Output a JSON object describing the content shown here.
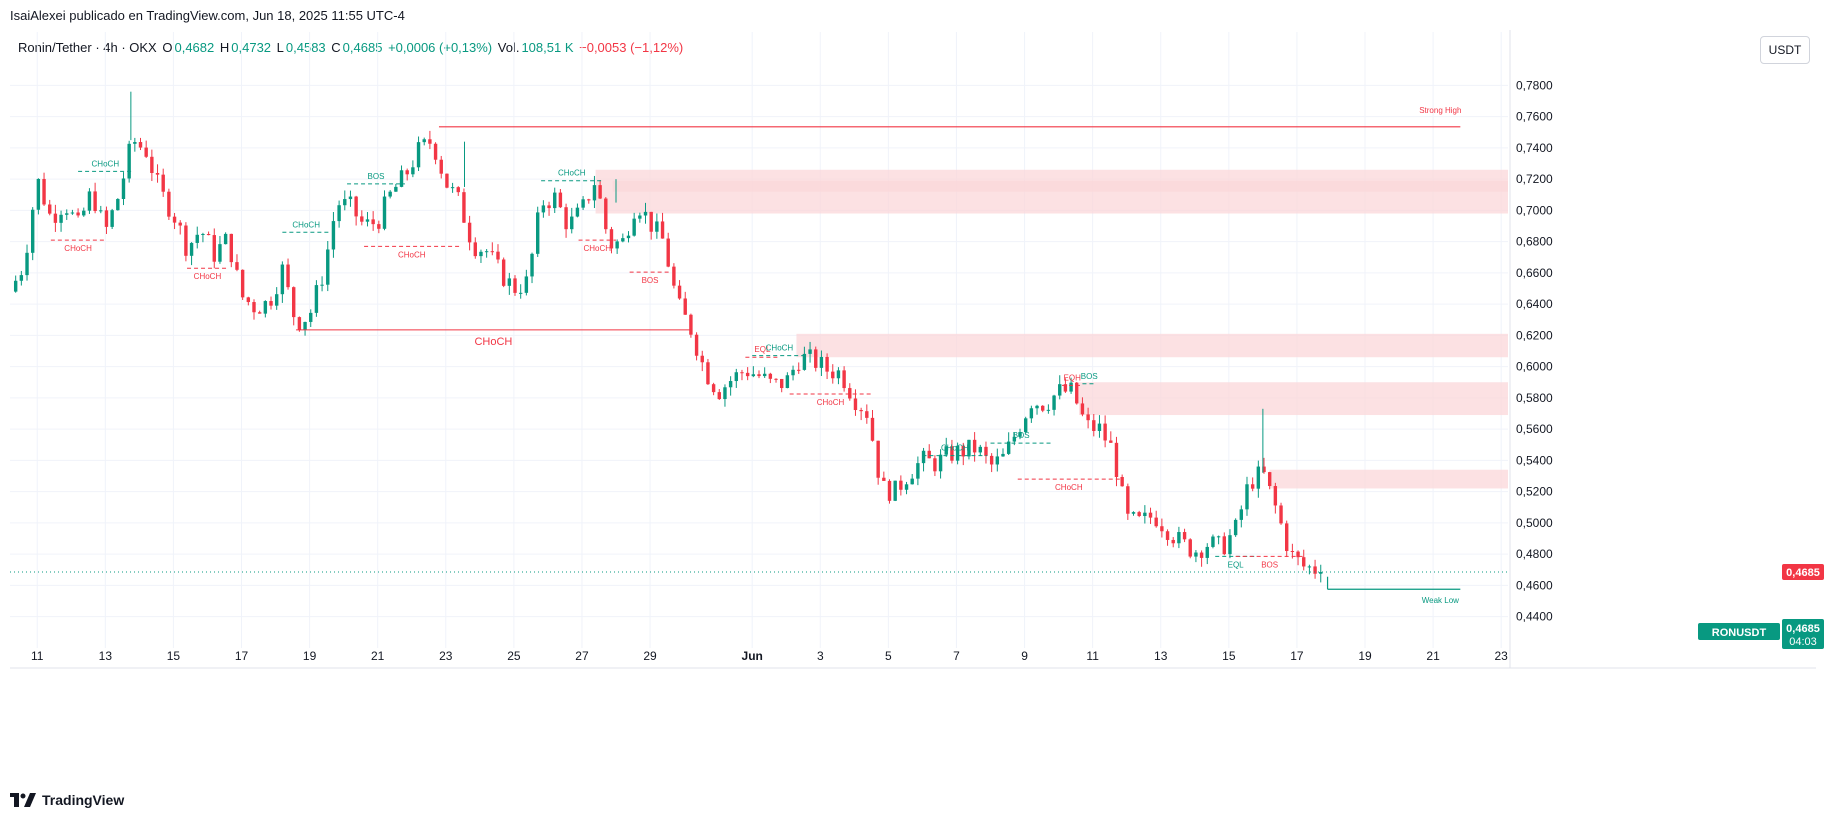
{
  "header": {
    "published": "IsaiAlexei publicado en TradingView.com, Jun 18, 2025 11:55 UTC-4"
  },
  "legend": {
    "symbol": "Ronin/Tether · 4h · OKX",
    "o_label": "O",
    "o_value": "0,4682",
    "h_label": "H",
    "h_value": "0,4732",
    "l_label": "L",
    "l_value": "0,4583",
    "c_label": "C",
    "c_value": "0,4685",
    "change": "+0,0006 (+0,13%)",
    "vol_label": "Vol.",
    "vol_value": "108,51 K",
    "vol_change": "−0,0053 (−1,12%)"
  },
  "currency_button": "USDT",
  "brand": "TradingView",
  "colors": {
    "up": "#089981",
    "down": "#f23645",
    "zone": "#fbd7da",
    "grid": "#f0f3fa"
  },
  "chart_data": {
    "type": "candlestick",
    "symbol": "RONUSDT",
    "interval": "4h",
    "ylim": [
      0.425,
      0.795
    ],
    "y_ticks": [
      "0,7800",
      "0,7600",
      "0,7400",
      "0,7200",
      "0,7000",
      "0,6800",
      "0,6600",
      "0,6400",
      "0,6200",
      "0,6000",
      "0,5800",
      "0,5600",
      "0,5400",
      "0,5200",
      "0,5000",
      "0,4800",
      "0,4600",
      "0,4400"
    ],
    "y_tick_values": [
      0.78,
      0.76,
      0.74,
      0.72,
      0.7,
      0.68,
      0.66,
      0.64,
      0.62,
      0.6,
      0.58,
      0.56,
      0.54,
      0.52,
      0.5,
      0.48,
      0.46,
      0.44
    ],
    "x_range_days": [
      10.2,
      54.2
    ],
    "x_ticks": [
      {
        "day": 11,
        "label": "11"
      },
      {
        "day": 13,
        "label": "13"
      },
      {
        "day": 15,
        "label": "15"
      },
      {
        "day": 17,
        "label": "17"
      },
      {
        "day": 19,
        "label": "19"
      },
      {
        "day": 21,
        "label": "21"
      },
      {
        "day": 23,
        "label": "23"
      },
      {
        "day": 25,
        "label": "25"
      },
      {
        "day": 27,
        "label": "27"
      },
      {
        "day": 29,
        "label": "29"
      },
      {
        "day": 32,
        "label": "Jun"
      },
      {
        "day": 34,
        "label": "3"
      },
      {
        "day": 36,
        "label": "5"
      },
      {
        "day": 38,
        "label": "7"
      },
      {
        "day": 40,
        "label": "9"
      },
      {
        "day": 42,
        "label": "11"
      },
      {
        "day": 44,
        "label": "13"
      },
      {
        "day": 46,
        "label": "15"
      },
      {
        "day": 48,
        "label": "17"
      },
      {
        "day": 50,
        "label": "19"
      },
      {
        "day": 52,
        "label": "21"
      },
      {
        "day": 54,
        "label": "23"
      }
    ],
    "anchors": [
      [
        10.2,
        0.648
      ],
      [
        10.6,
        0.665
      ],
      [
        11.0,
        0.72
      ],
      [
        11.4,
        0.695
      ],
      [
        11.8,
        0.705
      ],
      [
        12.2,
        0.69
      ],
      [
        12.6,
        0.712
      ],
      [
        13.0,
        0.686
      ],
      [
        13.4,
        0.71
      ],
      [
        13.8,
        0.745
      ],
      [
        14.2,
        0.738
      ],
      [
        14.6,
        0.712
      ],
      [
        15.0,
        0.698
      ],
      [
        15.4,
        0.676
      ],
      [
        15.8,
        0.688
      ],
      [
        16.2,
        0.672
      ],
      [
        16.6,
        0.682
      ],
      [
        17.0,
        0.645
      ],
      [
        17.4,
        0.638
      ],
      [
        17.8,
        0.641
      ],
      [
        18.2,
        0.662
      ],
      [
        18.6,
        0.628
      ],
      [
        19.0,
        0.633
      ],
      [
        19.4,
        0.66
      ],
      [
        19.8,
        0.705
      ],
      [
        20.2,
        0.702
      ],
      [
        20.6,
        0.69
      ],
      [
        21.0,
        0.693
      ],
      [
        21.4,
        0.711
      ],
      [
        21.8,
        0.722
      ],
      [
        22.2,
        0.738
      ],
      [
        22.6,
        0.745
      ],
      [
        23.0,
        0.718
      ],
      [
        23.4,
        0.705
      ],
      [
        23.8,
        0.678
      ],
      [
        24.2,
        0.674
      ],
      [
        24.6,
        0.66
      ],
      [
        25.0,
        0.65
      ],
      [
        25.4,
        0.654
      ],
      [
        25.8,
        0.705
      ],
      [
        26.2,
        0.708
      ],
      [
        26.6,
        0.69
      ],
      [
        27.0,
        0.7
      ],
      [
        27.4,
        0.72
      ],
      [
        27.8,
        0.678
      ],
      [
        28.2,
        0.68
      ],
      [
        28.6,
        0.706
      ],
      [
        29.0,
        0.692
      ],
      [
        29.4,
        0.68
      ],
      [
        29.8,
        0.64
      ],
      [
        30.2,
        0.624
      ],
      [
        30.6,
        0.598
      ],
      [
        31.0,
        0.584
      ],
      [
        31.4,
        0.592
      ],
      [
        31.8,
        0.598
      ],
      [
        32.2,
        0.594
      ],
      [
        32.6,
        0.588
      ],
      [
        33.0,
        0.59
      ],
      [
        33.4,
        0.606
      ],
      [
        33.8,
        0.604
      ],
      [
        34.2,
        0.598
      ],
      [
        34.6,
        0.596
      ],
      [
        35.0,
        0.58
      ],
      [
        35.4,
        0.57
      ],
      [
        35.8,
        0.522
      ],
      [
        36.2,
        0.52
      ],
      [
        36.6,
        0.532
      ],
      [
        37.0,
        0.54
      ],
      [
        37.4,
        0.538
      ],
      [
        37.8,
        0.544
      ],
      [
        38.2,
        0.546
      ],
      [
        38.6,
        0.548
      ],
      [
        39.0,
        0.536
      ],
      [
        39.4,
        0.542
      ],
      [
        39.8,
        0.56
      ],
      [
        40.2,
        0.578
      ],
      [
        40.6,
        0.576
      ],
      [
        41.0,
        0.584
      ],
      [
        41.4,
        0.584
      ],
      [
        41.8,
        0.562
      ],
      [
        42.2,
        0.56
      ],
      [
        42.6,
        0.546
      ],
      [
        43.0,
        0.502
      ],
      [
        43.4,
        0.5
      ],
      [
        43.8,
        0.505
      ],
      [
        44.2,
        0.496
      ],
      [
        44.6,
        0.487
      ],
      [
        45.0,
        0.482
      ],
      [
        45.4,
        0.487
      ],
      [
        45.8,
        0.484
      ],
      [
        46.2,
        0.496
      ],
      [
        46.6,
        0.526
      ],
      [
        47.0,
        0.532
      ],
      [
        47.4,
        0.508
      ],
      [
        47.8,
        0.48
      ],
      [
        48.2,
        0.472
      ],
      [
        48.6,
        0.47
      ],
      [
        48.8,
        0.4685
      ]
    ],
    "zones": [
      {
        "x0": 27.4,
        "x1": 54.2,
        "y0": 0.698,
        "y1": 0.726
      },
      {
        "x0": 27.9,
        "x1": 54.2,
        "y0": 0.712,
        "y1": 0.719
      },
      {
        "x0": 33.3,
        "x1": 54.2,
        "y0": 0.606,
        "y1": 0.621
      },
      {
        "x0": 41.6,
        "x1": 54.2,
        "y0": 0.569,
        "y1": 0.59
      },
      {
        "x0": 47.2,
        "x1": 54.2,
        "y0": 0.522,
        "y1": 0.534
      }
    ],
    "levels": [
      {
        "label": "Strong High",
        "x0": 22.8,
        "x1": 52.8,
        "y": 0.7535,
        "color": "#f23645",
        "labelSide": "above"
      },
      {
        "label": "Weak Low",
        "x0": 48.9,
        "x1": 52.8,
        "y": 0.4575,
        "color": "#089981",
        "labelSide": "below"
      }
    ],
    "structures": [
      {
        "label": "CHoCH",
        "x0": 12.2,
        "x1": 13.8,
        "y": 0.725,
        "color": "#089981",
        "dashed": true,
        "pos": "above"
      },
      {
        "label": "CHoCH",
        "x0": 11.4,
        "x1": 13.0,
        "y": 0.681,
        "color": "#f23645",
        "dashed": true,
        "pos": "below"
      },
      {
        "label": "CHoCH",
        "x0": 15.4,
        "x1": 16.6,
        "y": 0.663,
        "color": "#f23645",
        "dashed": true,
        "pos": "below"
      },
      {
        "label": "CHoCH",
        "x0": 18.2,
        "x1": 19.6,
        "y": 0.686,
        "color": "#089981",
        "dashed": true,
        "pos": "above"
      },
      {
        "label": "BOS",
        "x0": 20.1,
        "x1": 21.8,
        "y": 0.717,
        "color": "#089981",
        "dashed": true,
        "pos": "above"
      },
      {
        "label": "CHoCH",
        "x0": 20.6,
        "x1": 23.4,
        "y": 0.677,
        "color": "#f23645",
        "dashed": true,
        "pos": "below"
      },
      {
        "label": "CHoCH",
        "x0": 18.6,
        "x1": 30.2,
        "y": 0.6235,
        "color": "#f23645",
        "dashed": false,
        "pos": "below",
        "size": 11
      },
      {
        "label": "CHoCH",
        "x0": 25.8,
        "x1": 27.6,
        "y": 0.719,
        "color": "#089981",
        "dashed": true,
        "pos": "above"
      },
      {
        "label": "CHoCH",
        "x0": 26.9,
        "x1": 28.0,
        "y": 0.681,
        "color": "#f23645",
        "dashed": true,
        "pos": "below"
      },
      {
        "label": "BOS",
        "x0": 28.4,
        "x1": 29.6,
        "y": 0.6605,
        "color": "#f23645",
        "dashed": true,
        "pos": "below"
      },
      {
        "label": "EQL",
        "x0": 31.8,
        "x1": 32.8,
        "y": 0.606,
        "color": "#f23645",
        "dashed": true,
        "pos": "above"
      },
      {
        "label": "CHoCH",
        "x0": 32.0,
        "x1": 33.6,
        "y": 0.607,
        "color": "#089981",
        "dashed": true,
        "pos": "above"
      },
      {
        "label": "CHoCH",
        "x0": 33.1,
        "x1": 35.5,
        "y": 0.5825,
        "color": "#f23645",
        "dashed": true,
        "pos": "below"
      },
      {
        "label": "CHoCH",
        "x0": 37.0,
        "x1": 38.9,
        "y": 0.543,
        "color": "#089981",
        "dashed": true,
        "pos": "above"
      },
      {
        "label": "BOS",
        "x0": 39.0,
        "x1": 40.8,
        "y": 0.551,
        "color": "#089981",
        "dashed": true,
        "pos": "above"
      },
      {
        "label": "CHoCH",
        "x0": 39.8,
        "x1": 42.8,
        "y": 0.528,
        "color": "#f23645",
        "dashed": true,
        "pos": "below"
      },
      {
        "label": "EQH",
        "x0": 41.1,
        "x1": 41.7,
        "y": 0.588,
        "color": "#f23645",
        "dashed": true,
        "pos": "above"
      },
      {
        "label": "BOS",
        "x0": 41.7,
        "x1": 42.1,
        "y": 0.589,
        "color": "#089981",
        "dashed": true,
        "pos": "above"
      },
      {
        "label": "EQL",
        "x0": 45.6,
        "x1": 46.8,
        "y": 0.4785,
        "color": "#089981",
        "dashed": true,
        "pos": "below"
      },
      {
        "label": "BOS",
        "x0": 46.2,
        "x1": 48.2,
        "y": 0.4785,
        "color": "#f23645",
        "dashed": true,
        "pos": "below"
      }
    ],
    "last_price": {
      "value": 0.4685,
      "label": "0,4685"
    },
    "price_tag": {
      "symbol": "RONUSDT",
      "price": "0,4685",
      "countdown": "04:03"
    }
  }
}
